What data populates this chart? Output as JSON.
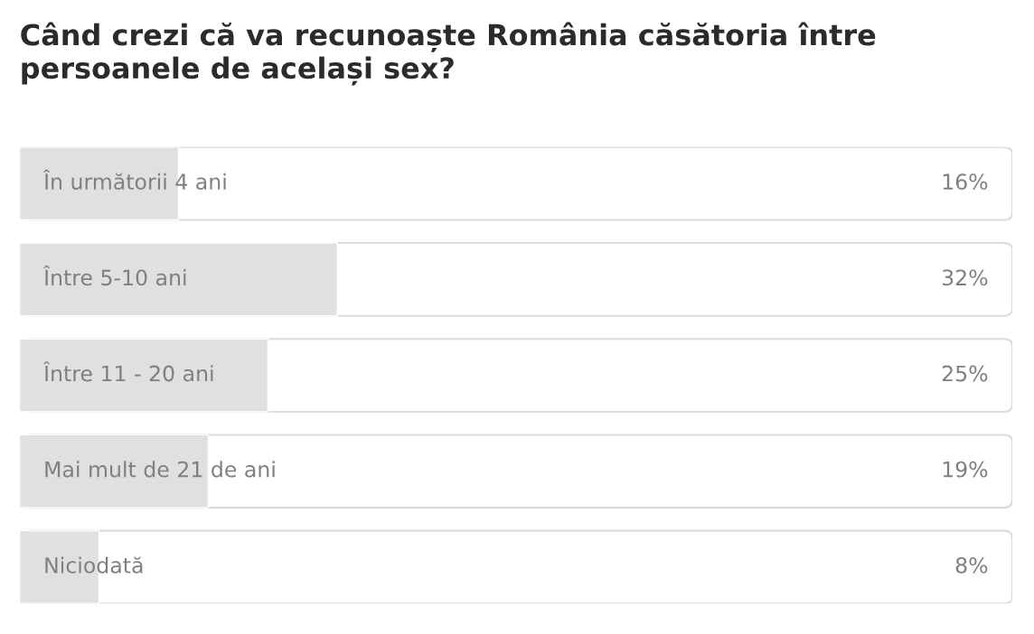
{
  "chart_data": {
    "type": "bar",
    "orientation": "horizontal",
    "title": "Când crezi că va recunoaște România căsătoria între persoanele de același sex?",
    "categories": [
      "În următorii 4 ani",
      "Între 5-10 ani",
      "Între 11 - 20 ani",
      "Mai mult de 21 de ani",
      "Niciodată"
    ],
    "values": [
      16,
      32,
      25,
      19,
      8
    ],
    "value_labels": [
      "16%",
      "32%",
      "25%",
      "19%",
      "8%"
    ],
    "color": "#e0e0e0",
    "xlim": [
      0,
      100
    ],
    "tick_labels": false,
    "grid": false,
    "legend": false
  }
}
